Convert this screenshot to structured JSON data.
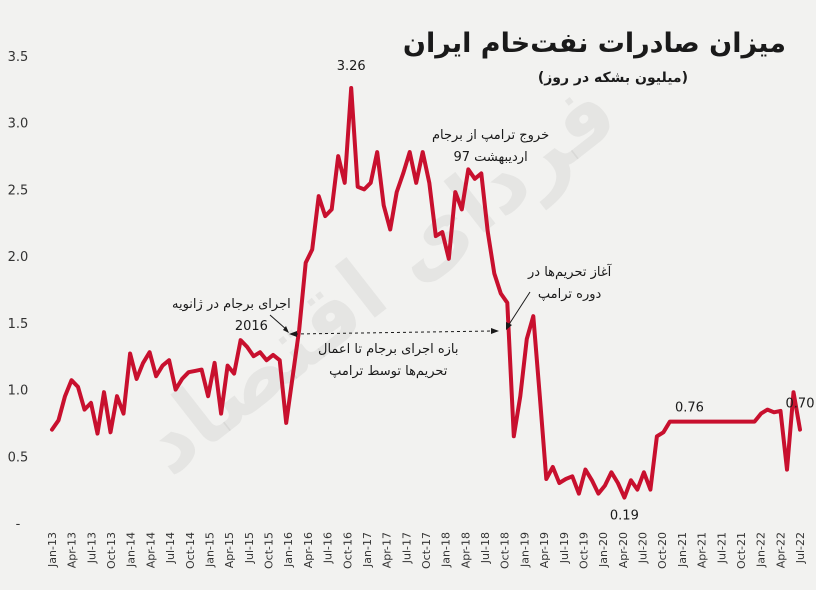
{
  "title": "میزان صادرات نفت‌خام ایران",
  "subtitle": "(میلیون بشکه در روز)",
  "watermark": "فردای اقتصاد",
  "annotations": {
    "jcpoa_start_line1": "اجرای برجام در ژانویه",
    "jcpoa_start_line2": "2016",
    "period_line1": "بازه اجرای برجام تا اعمال",
    "period_line2": "تحریم‌ها توسط ترامپ",
    "trump_exit_line1": "خروج ترامپ از برجام",
    "trump_exit_line2": "اردیبهشت 97",
    "sanctions_line1": "آغاز تحریم‌ها در",
    "sanctions_line2": "دوره ترامپ"
  },
  "colors": {
    "line": "#c8102e",
    "background": "#f2f2f0",
    "text": "#1a1a1a"
  },
  "chart_data": {
    "type": "line",
    "title": "میزان صادرات نفت‌خام ایران",
    "subtitle": "(میلیون بشکه در روز)",
    "ylim": [
      0,
      3.5
    ],
    "y_ticks": [
      "-",
      "0.5",
      "1.0",
      "1.5",
      "2.0",
      "2.5",
      "3.0",
      "3.5"
    ],
    "x_tick_labels": [
      "Jan-13",
      "Apr-13",
      "Jul-13",
      "Oct-13",
      "Jan-14",
      "Apr-14",
      "Jul-14",
      "Oct-14",
      "Jan-15",
      "Apr-15",
      "Jul-15",
      "Oct-15",
      "Jan-16",
      "Apr-16",
      "Jul-16",
      "Oct-16",
      "Jan-17",
      "Apr-17",
      "Jul-17",
      "Oct-17",
      "Jan-18",
      "Apr-18",
      "Jul-18",
      "Oct-18",
      "Jan-19",
      "Apr-19",
      "Jul-19",
      "Oct-19",
      "Jan-20",
      "Apr-20",
      "Jul-20",
      "Oct-20",
      "Jan-21",
      "Apr-21",
      "Jul-21",
      "Oct-21",
      "Jan-22",
      "Apr-22",
      "Jul-22"
    ],
    "grid": false,
    "legend": "none",
    "series": [
      {
        "values": [
          0.7,
          0.77,
          0.95,
          1.07,
          1.02,
          0.85,
          0.9,
          0.67,
          0.98,
          0.68,
          0.95,
          0.82,
          1.27,
          1.08,
          1.2,
          1.28,
          1.1,
          1.18,
          1.22,
          1.0,
          1.08,
          1.13,
          1.14,
          1.15,
          0.95,
          1.2,
          0.82,
          1.18,
          1.12,
          1.37,
          1.32,
          1.25,
          1.28,
          1.22,
          1.26,
          1.22,
          0.75,
          1.1,
          1.45,
          1.95,
          2.05,
          2.45,
          2.3,
          2.35,
          2.75,
          2.55,
          3.26,
          2.52,
          2.5,
          2.55,
          2.78,
          2.38,
          2.2,
          2.48,
          2.62,
          2.78,
          2.55,
          2.78,
          2.55,
          2.15,
          2.18,
          1.98,
          2.48,
          2.35,
          2.65,
          2.58,
          2.62,
          2.18,
          1.87,
          1.72,
          1.65,
          0.65,
          0.95,
          1.38,
          1.55,
          0.95,
          0.33,
          0.42,
          0.3,
          0.33,
          0.35,
          0.22,
          0.4,
          0.32,
          0.22,
          0.28,
          0.38,
          0.3,
          0.19,
          0.32,
          0.25,
          0.38,
          0.25,
          0.65,
          0.68,
          0.76,
          0.76,
          0.76,
          0.76,
          0.76,
          0.76,
          0.76,
          0.76,
          0.76,
          0.76,
          0.76,
          0.76,
          0.76,
          0.76,
          0.82,
          0.85,
          0.83,
          0.84,
          0.4,
          0.98,
          0.7
        ]
      }
    ],
    "data_labels": [
      {
        "text": "3.26",
        "index": 46
      },
      {
        "text": "0.19",
        "index": 88
      },
      {
        "text": "0.76",
        "index": 98
      },
      {
        "text": "0.70",
        "index": 115
      }
    ]
  }
}
